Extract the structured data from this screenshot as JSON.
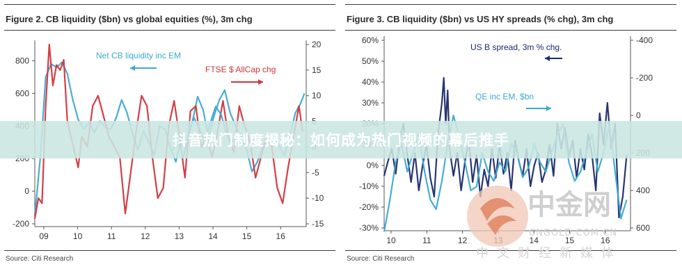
{
  "chart_data": [
    {
      "type": "line",
      "title": "Figure 2. CB liquidity ($bn) vs global equities (%), 3m chg",
      "source": "Source: Citi Research",
      "x_ticks": [
        "09",
        "10",
        "11",
        "12",
        "13",
        "14",
        "15",
        "16"
      ],
      "x_range": [
        2009.0,
        2016.5
      ],
      "y_left": {
        "range": [
          -200,
          900
        ],
        "ticks": [
          "800",
          "600",
          "400",
          "200",
          "0",
          "-200"
        ]
      },
      "y_right": {
        "range": [
          -15,
          20
        ],
        "ticks": [
          "20",
          "15",
          "10",
          "5",
          "0",
          "-5",
          "-10",
          "-15"
        ]
      },
      "grid": false,
      "series": [
        {
          "name": "Net CB liquidity inc EM",
          "axis": "left",
          "color": "#3ea9d0",
          "x": [
            2009.0,
            2009.15,
            2009.3,
            2009.45,
            2009.6,
            2009.75,
            2009.9,
            2010.05,
            2010.2,
            2010.35,
            2010.5,
            2010.65,
            2010.8,
            2010.95,
            2011.1,
            2011.25,
            2011.4,
            2011.55,
            2011.7,
            2011.85,
            2012.0,
            2012.15,
            2012.3,
            2012.45,
            2012.6,
            2012.75,
            2012.9,
            2013.05,
            2013.2,
            2013.35,
            2013.5,
            2013.65,
            2013.8,
            2013.95,
            2014.1,
            2014.25,
            2014.4,
            2014.55,
            2014.7,
            2014.85,
            2015.0,
            2015.15,
            2015.3,
            2015.45,
            2015.6,
            2015.75,
            2015.9,
            2016.05,
            2016.2,
            2016.35,
            2016.45
          ],
          "y": [
            -150,
            200,
            700,
            780,
            760,
            790,
            720,
            560,
            440,
            380,
            420,
            360,
            430,
            390,
            380,
            450,
            560,
            480,
            350,
            250,
            370,
            300,
            220,
            400,
            380,
            260,
            180,
            340,
            300,
            420,
            580,
            500,
            330,
            460,
            560,
            620,
            480,
            400,
            330,
            260,
            120,
            180,
            280,
            300,
            330,
            280,
            220,
            340,
            480,
            540,
            600
          ]
        },
        {
          "name": "FTSE $ AllCap chg",
          "axis": "right",
          "color": "#d2343c",
          "x": [
            2009.0,
            2009.1,
            2009.2,
            2009.3,
            2009.4,
            2009.5,
            2009.6,
            2009.7,
            2009.8,
            2009.9,
            2010.0,
            2010.1,
            2010.2,
            2010.3,
            2010.45,
            2010.6,
            2010.75,
            2010.9,
            2011.05,
            2011.2,
            2011.35,
            2011.5,
            2011.65,
            2011.8,
            2011.95,
            2012.1,
            2012.25,
            2012.4,
            2012.55,
            2012.7,
            2012.85,
            2013.0,
            2013.15,
            2013.3,
            2013.45,
            2013.6,
            2013.75,
            2013.9,
            2014.05,
            2014.2,
            2014.35,
            2014.5,
            2014.65,
            2014.8,
            2014.95,
            2015.1,
            2015.25,
            2015.4,
            2015.55,
            2015.7,
            2015.85,
            2016.0,
            2016.15,
            2016.3,
            2016.4
          ],
          "y": [
            -14,
            -10,
            -11,
            8,
            20,
            12,
            16,
            15,
            17,
            5,
            2,
            -1,
            -4,
            2,
            0,
            8,
            10,
            6,
            2,
            0,
            -2,
            -13,
            -5,
            3,
            10,
            8,
            -2,
            -10,
            -8,
            4,
            9,
            2,
            -6,
            7,
            8,
            0,
            2,
            -2,
            3,
            9,
            2,
            -1,
            8,
            4,
            1,
            -6,
            -2,
            2,
            0,
            -8,
            -11,
            -4,
            2,
            8,
            3
          ]
        },
        {
          "name": "",
          "axis": "left",
          "color": "#3ea9d0",
          "x": [
            2012.8,
            2012.95,
            2013.1,
            2013.25,
            2013.4,
            2013.55,
            2013.7,
            2013.85,
            2014.0,
            2014.15,
            2014.3,
            2014.45,
            2014.6,
            2014.75
          ],
          "y": [
            250,
            330,
            200,
            360,
            450,
            380,
            300,
            420,
            520,
            470,
            350,
            300,
            370,
            330
          ]
        }
      ],
      "annotations": [
        {
          "text": "Net CB liquidity inc EM",
          "arrow": "left"
        },
        {
          "text": "FTSE $ AllCap chg",
          "arrow": "right"
        }
      ]
    },
    {
      "type": "line",
      "title": "Figure 3. CB liquidity ($bn) vs US HY spreads (% chg), 3m chg",
      "source": "Source: Citi Research",
      "x_ticks": [
        "10",
        "11",
        "12",
        "13",
        "14",
        "15",
        "16"
      ],
      "x_range": [
        2010.0,
        2016.4
      ],
      "y_left": {
        "range": [
          -30,
          60
        ],
        "ticks": [
          "60%",
          "50%",
          "40%",
          "30%",
          "20%",
          "10%",
          "0%",
          "-10%",
          "-20%",
          "-30%"
        ]
      },
      "y_right": {
        "range": [
          -400,
          600
        ],
        "reversed": true,
        "ticks": [
          "-400",
          "-200",
          "0",
          "200",
          "400",
          "600"
        ]
      },
      "grid": false,
      "series": [
        {
          "name": "US B spread, 3m % chg.",
          "axis": "left",
          "color": "#1b2a6b",
          "x": [
            2010.0,
            2010.1,
            2010.2,
            2010.3,
            2010.4,
            2010.5,
            2010.6,
            2010.7,
            2010.8,
            2010.9,
            2011.0,
            2011.1,
            2011.2,
            2011.3,
            2011.4,
            2011.5,
            2011.55,
            2011.6,
            2011.65,
            2011.7,
            2011.8,
            2011.9,
            2012.0,
            2012.1,
            2012.2,
            2012.3,
            2012.4,
            2012.5,
            2012.6,
            2012.7,
            2012.8,
            2012.9,
            2013.0,
            2013.1,
            2013.2,
            2013.3,
            2013.4,
            2013.5,
            2013.6,
            2013.7,
            2013.8,
            2013.9,
            2014.0,
            2014.1,
            2014.2,
            2014.3,
            2014.4,
            2014.5,
            2014.6,
            2014.7,
            2014.8,
            2014.9,
            2015.0,
            2015.1,
            2015.2,
            2015.3,
            2015.4,
            2015.5,
            2015.6,
            2015.7,
            2015.8,
            2015.9,
            2016.0,
            2016.1,
            2016.2,
            2016.3
          ],
          "y": [
            -5,
            2,
            8,
            -4,
            12,
            20,
            5,
            -8,
            6,
            -12,
            0,
            10,
            -6,
            -15,
            15,
            30,
            42,
            20,
            36,
            8,
            -5,
            6,
            -12,
            2,
            12,
            -8,
            5,
            -15,
            -2,
            -10,
            8,
            -6,
            10,
            -4,
            6,
            -12,
            12,
            2,
            -5,
            8,
            -10,
            0,
            6,
            -8,
            -2,
            10,
            -5,
            20,
            8,
            18,
            4,
            12,
            -6,
            8,
            -2,
            15,
            5,
            -12,
            25,
            10,
            30,
            8,
            20,
            -25,
            -15,
            5
          ]
        },
        {
          "name": "QE inc EM, $bn",
          "axis": "right",
          "color": "#3ea9d0",
          "x": [
            2010.0,
            2010.15,
            2010.3,
            2010.45,
            2010.6,
            2010.75,
            2010.9,
            2011.05,
            2011.2,
            2011.35,
            2011.5,
            2011.65,
            2011.8,
            2011.95,
            2012.1,
            2012.25,
            2012.4,
            2012.55,
            2012.7,
            2012.85,
            2013.0,
            2013.15,
            2013.3,
            2013.45,
            2013.6,
            2013.75,
            2013.9,
            2014.05,
            2014.2,
            2014.35,
            2014.5,
            2014.65,
            2014.8,
            2014.95,
            2015.1,
            2015.25,
            2015.4,
            2015.55,
            2015.7,
            2015.85,
            2016.0,
            2016.15,
            2016.3
          ],
          "y": [
            620,
            450,
            250,
            150,
            300,
            200,
            100,
            300,
            450,
            500,
            350,
            150,
            0,
            120,
            250,
            400,
            380,
            200,
            300,
            350,
            250,
            300,
            150,
            200,
            330,
            280,
            150,
            250,
            300,
            200,
            100,
            50,
            250,
            350,
            300,
            200,
            100,
            300,
            200,
            50,
            300,
            550,
            450
          ]
        }
      ],
      "annotations": [
        {
          "text": "US B spread, 3m % chg.",
          "arrow": "left"
        },
        {
          "text": "QE inc EM, $bn",
          "arrow": "right"
        }
      ]
    }
  ],
  "banner": {
    "text": "抖音热门制度揭秘：如何成为热门视频的幕后推手"
  },
  "watermark": {
    "cn": "中金网",
    "url": "CNGOLD.COM.CN",
    "sub": "中文财经新媒体"
  }
}
